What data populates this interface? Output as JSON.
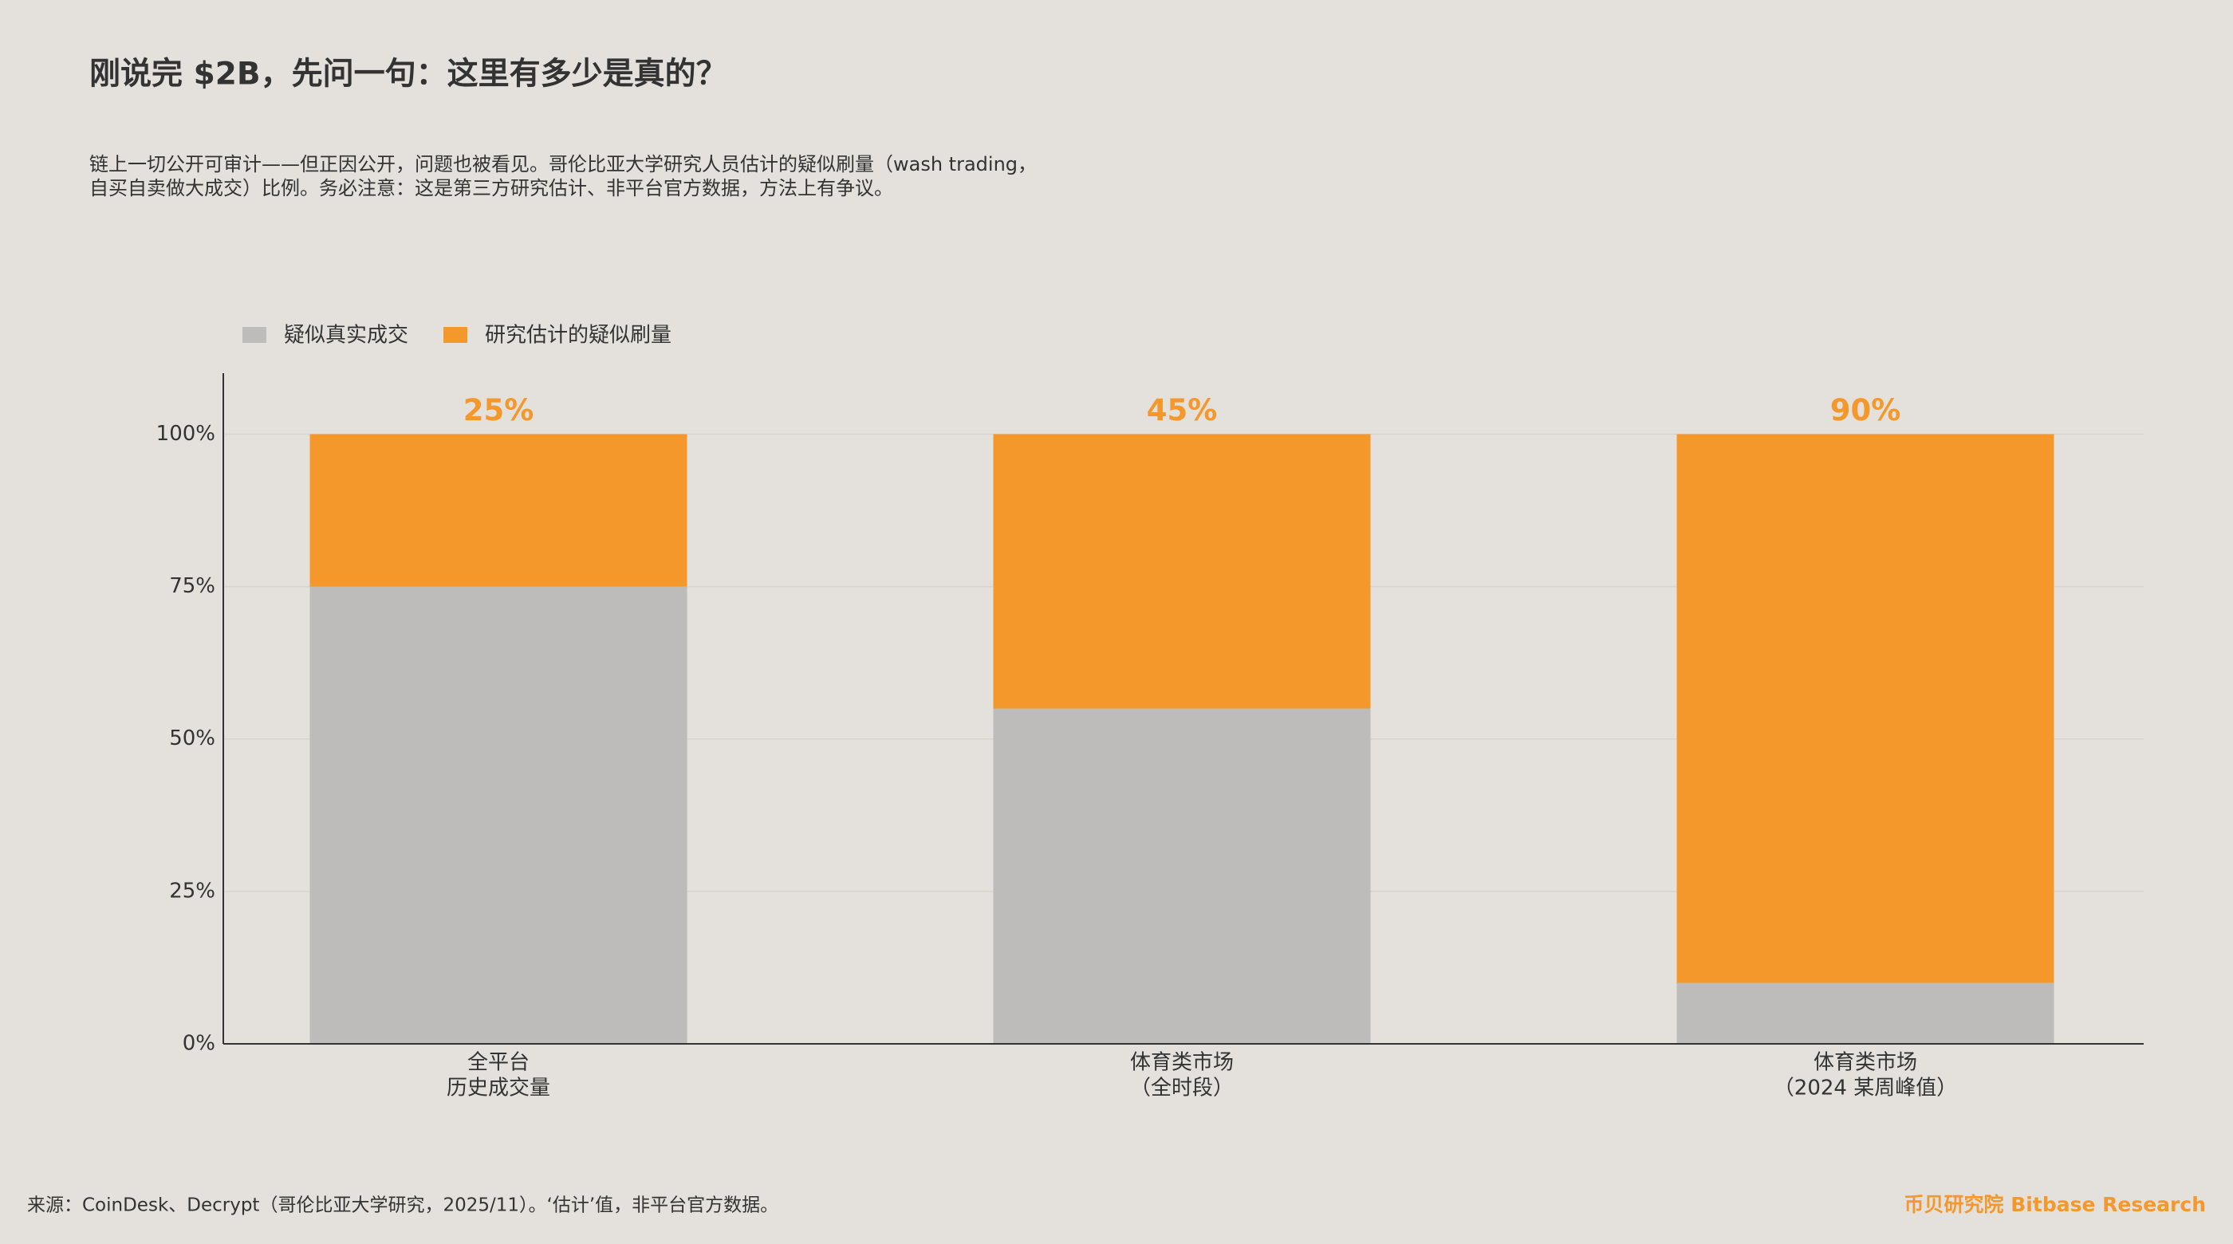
{
  "chart_data": {
    "type": "stacked_bar",
    "title": "刚说完 $2B，先问一句：这里有多少是真的？",
    "subtitle": [
      "链上一切公开可审计——但正因公开，问题也被看见。哥伦比亚大学研究人员估计的疑似刷量（wash trading，",
      "自买自卖做大成交）比例。务必注意：这是第三方研究估计、非平台官方数据，方法上有争议。"
    ],
    "categories": [
      [
        "全平台",
        "历史成交量"
      ],
      [
        "体育类市场",
        "（全时段）"
      ],
      [
        "体育类市场",
        "（2024 某周峰值）"
      ]
    ],
    "series": [
      {
        "name": "疑似真实成交",
        "color": "#bdbcba",
        "values": [
          75,
          55,
          10
        ]
      },
      {
        "name": "研究估计的疑似刷量",
        "color": "#f4982c",
        "values": [
          25,
          45,
          90
        ],
        "value_labels": [
          "25%",
          "45%",
          "90%"
        ]
      }
    ],
    "ylim": [
      0,
      110
    ],
    "yticks": [
      {
        "value": 0,
        "label": "0%"
      },
      {
        "value": 25,
        "label": "25%"
      },
      {
        "value": 50,
        "label": "50%"
      },
      {
        "value": 75,
        "label": "75%"
      },
      {
        "value": 100,
        "label": "100%"
      }
    ],
    "grid": true,
    "legend": "top-left",
    "source": "来源：CoinDesk、Decrypt（哥伦比亚大学研究，2025/11）。‘估计’值，非平台官方数据。",
    "brand": "币贝研究院 Bitbase Research"
  }
}
